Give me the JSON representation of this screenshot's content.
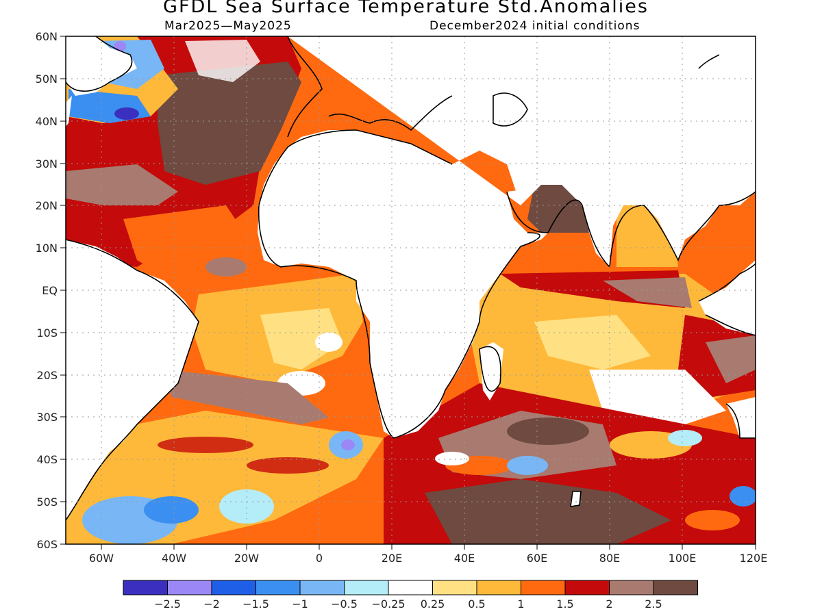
{
  "title": "GFDL Sea Surface Temperature Std.Anomalies",
  "subtitle_left": "Mar2025—May2025",
  "subtitle_right": "December2024 initial conditions",
  "map": {
    "lat_labels": [
      "60N",
      "50N",
      "40N",
      "30N",
      "20N",
      "10N",
      "EQ",
      "10S",
      "20S",
      "30S",
      "40S",
      "50S",
      "60S"
    ],
    "lon_labels": [
      "60W",
      "40W",
      "20W",
      "0",
      "20E",
      "40E",
      "60E",
      "80E",
      "100E",
      "120E"
    ]
  },
  "colorbar": {
    "colors": [
      "#3b2fbf",
      "#9b87f5",
      "#1f5fe8",
      "#3b8ff0",
      "#78b6f5",
      "#b4ecf8",
      "#ffffff",
      "#ffe184",
      "#ffb93a",
      "#ff6a10",
      "#c40a0a",
      "#a87a70",
      "#6e4a40"
    ],
    "labels": [
      "−2.5",
      "−2",
      "−1.5",
      "−1",
      "−0.5",
      "−0.25",
      "0.25",
      "0.5",
      "1",
      "1.5",
      "2",
      "2.5"
    ]
  }
}
